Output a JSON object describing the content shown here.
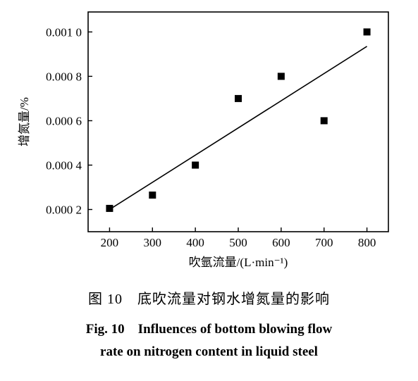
{
  "chart_data": {
    "type": "scatter",
    "xlabel": "吹氩流量/(L·min⁻¹)",
    "ylabel": "增氮量/%",
    "xlim": [
      150,
      850
    ],
    "ylim": [
      0.0001,
      0.00109
    ],
    "x_ticks": [
      200,
      300,
      400,
      500,
      600,
      700,
      800
    ],
    "x_tick_labels": [
      "200",
      "300",
      "400",
      "500",
      "600",
      "700",
      "800"
    ],
    "y_ticks": [
      0.0002,
      0.0004,
      0.0006,
      0.0008,
      0.001
    ],
    "y_tick_labels": [
      "0.000 2",
      "0.000 4",
      "0.000 6",
      "0.000 8",
      "0.001 0"
    ],
    "grid": false,
    "series": [
      {
        "marker": "square",
        "color": "#000000",
        "x": [
          200,
          300,
          400,
          500,
          600,
          700,
          800
        ],
        "y": [
          0.000205,
          0.000265,
          0.0004,
          0.0007,
          0.0008,
          0.0006,
          0.001
        ]
      }
    ],
    "fit_line": {
      "x": [
        200,
        800
      ],
      "y": [
        0.0002,
        0.000935
      ],
      "color": "#000000"
    }
  },
  "caption": {
    "cn": "图 10　底吹流量对钢水增氮量的影响",
    "en_line1": "Fig. 10　Influences of bottom blowing flow",
    "en_line2": "rate on nitrogen content in liquid steel"
  }
}
